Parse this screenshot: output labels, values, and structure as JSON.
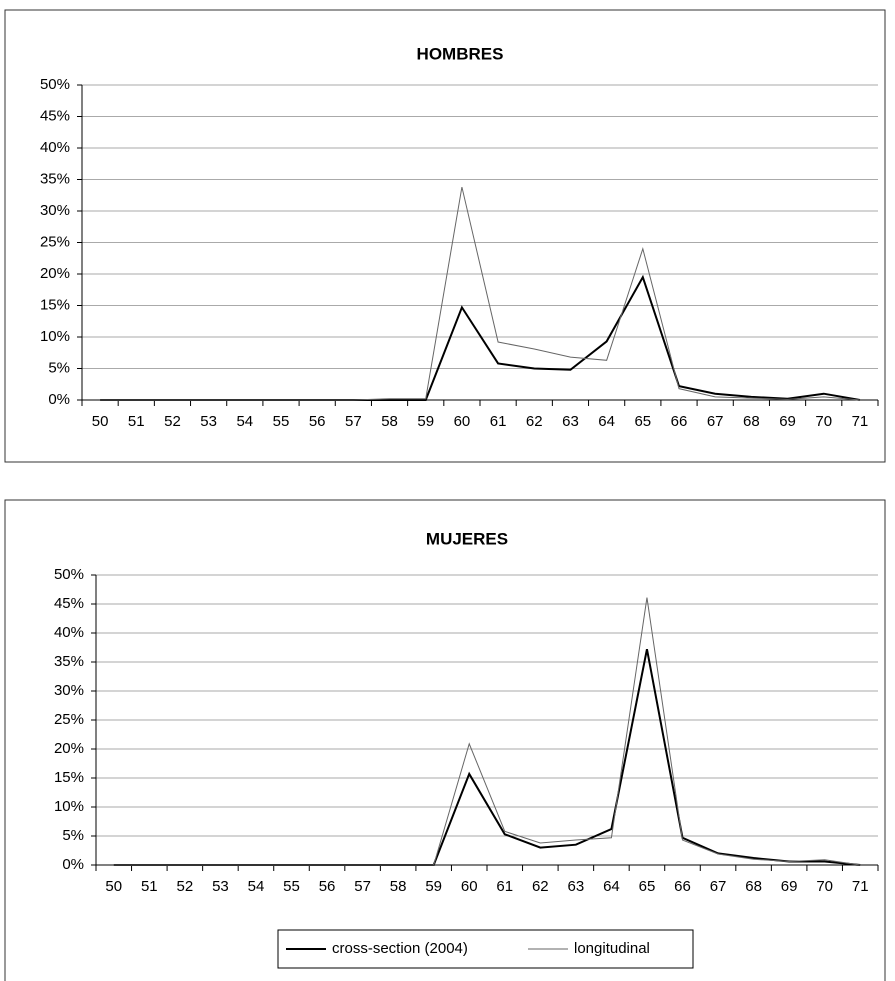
{
  "chart_data": [
    {
      "type": "line",
      "title": "HOMBRES",
      "categories": [
        "50",
        "51",
        "52",
        "53",
        "54",
        "55",
        "56",
        "57",
        "58",
        "59",
        "60",
        "61",
        "62",
        "63",
        "64",
        "65",
        "66",
        "67",
        "68",
        "69",
        "70",
        "71"
      ],
      "series": [
        {
          "color": "#000000",
          "values": [
            0,
            0,
            0,
            0,
            0,
            0,
            0,
            0,
            0,
            0,
            14.7,
            5.8,
            5.0,
            4.8,
            9.3,
            19.5,
            2.2,
            1.0,
            0.5,
            0.2,
            1.0,
            0
          ]
        },
        {
          "color": "#666666",
          "values": [
            0,
            0,
            0,
            0,
            0,
            0,
            0,
            0,
            0.2,
            0.2,
            33.8,
            9.2,
            8.1,
            6.8,
            6.3,
            24.0,
            1.8,
            0.5,
            0.3,
            0.1,
            0.5,
            0
          ]
        }
      ],
      "ylim": [
        0,
        50
      ],
      "yticks": [
        {
          "value": 0,
          "label": "0%"
        },
        {
          "value": 5,
          "label": "5%"
        },
        {
          "value": 10,
          "label": "10%"
        },
        {
          "value": 15,
          "label": "15%"
        },
        {
          "value": 20,
          "label": "20%"
        },
        {
          "value": 25,
          "label": "25%"
        },
        {
          "value": 30,
          "label": "30%"
        },
        {
          "value": 35,
          "label": "35%"
        },
        {
          "value": 40,
          "label": "40%"
        },
        {
          "value": 45,
          "label": "45%"
        },
        {
          "value": 50,
          "label": "50%"
        }
      ],
      "grid": true
    },
    {
      "type": "line",
      "title": "MUJERES",
      "categories": [
        "50",
        "51",
        "52",
        "53",
        "54",
        "55",
        "56",
        "57",
        "58",
        "59",
        "60",
        "61",
        "62",
        "63",
        "64",
        "65",
        "66",
        "67",
        "68",
        "69",
        "70",
        "71"
      ],
      "series": [
        {
          "name": "cross-section (2004)",
          "color": "#000000",
          "values": [
            0,
            0,
            0,
            0,
            0,
            0,
            0,
            0,
            0,
            0,
            15.7,
            5.3,
            3.0,
            3.5,
            6.2,
            37.2,
            4.7,
            2.0,
            1.2,
            0.6,
            0.6,
            0
          ]
        },
        {
          "name": "longitudinal",
          "color": "#666666",
          "values": [
            0,
            0,
            0,
            0,
            0,
            0,
            0,
            0,
            0,
            0,
            20.9,
            5.8,
            3.8,
            4.3,
            4.7,
            46.1,
            4.3,
            1.9,
            1.0,
            0.6,
            0.9,
            0
          ]
        }
      ],
      "ylim": [
        0,
        50
      ],
      "yticks": [
        {
          "value": 0,
          "label": "0%"
        },
        {
          "value": 5,
          "label": "5%"
        },
        {
          "value": 10,
          "label": "10%"
        },
        {
          "value": 15,
          "label": "15%"
        },
        {
          "value": 20,
          "label": "20%"
        },
        {
          "value": 25,
          "label": "25%"
        },
        {
          "value": 30,
          "label": "30%"
        },
        {
          "value": 35,
          "label": "35%"
        },
        {
          "value": 40,
          "label": "40%"
        },
        {
          "value": 45,
          "label": "45%"
        },
        {
          "value": 50,
          "label": "50%"
        }
      ],
      "grid": true
    }
  ]
}
